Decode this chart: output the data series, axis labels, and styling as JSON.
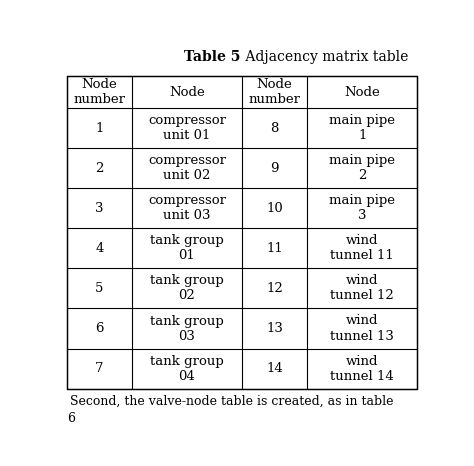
{
  "title_bold": "Table 5",
  "title_regular": " Adjacency matrix table",
  "col_headers": [
    "Node\nnumber",
    "Node",
    "Node\nnumber",
    "Node"
  ],
  "rows": [
    [
      "1",
      "compressor\nunit 01",
      "8",
      "main pipe\n1"
    ],
    [
      "2",
      "compressor\nunit 02",
      "9",
      "main pipe\n2"
    ],
    [
      "3",
      "compressor\nunit 03",
      "10",
      "main pipe\n3"
    ],
    [
      "4",
      "tank group\n01",
      "11",
      "wind\ntunnel 11"
    ],
    [
      "5",
      "tank group\n02",
      "12",
      "wind\ntunnel 12"
    ],
    [
      "6",
      "tank group\n03",
      "13",
      "wind\ntunnel 13"
    ],
    [
      "7",
      "tank group\n04",
      "14",
      "wind\ntunnel 14"
    ]
  ],
  "footer_text": "Second, the valve-node table is created, as in table",
  "footer_number": "6",
  "bg_color": "#ffffff",
  "line_color": "#000000",
  "text_color": "#000000",
  "title_fontsize": 10,
  "header_fontsize": 9.5,
  "cell_fontsize": 9.5,
  "footer_fontsize": 9
}
